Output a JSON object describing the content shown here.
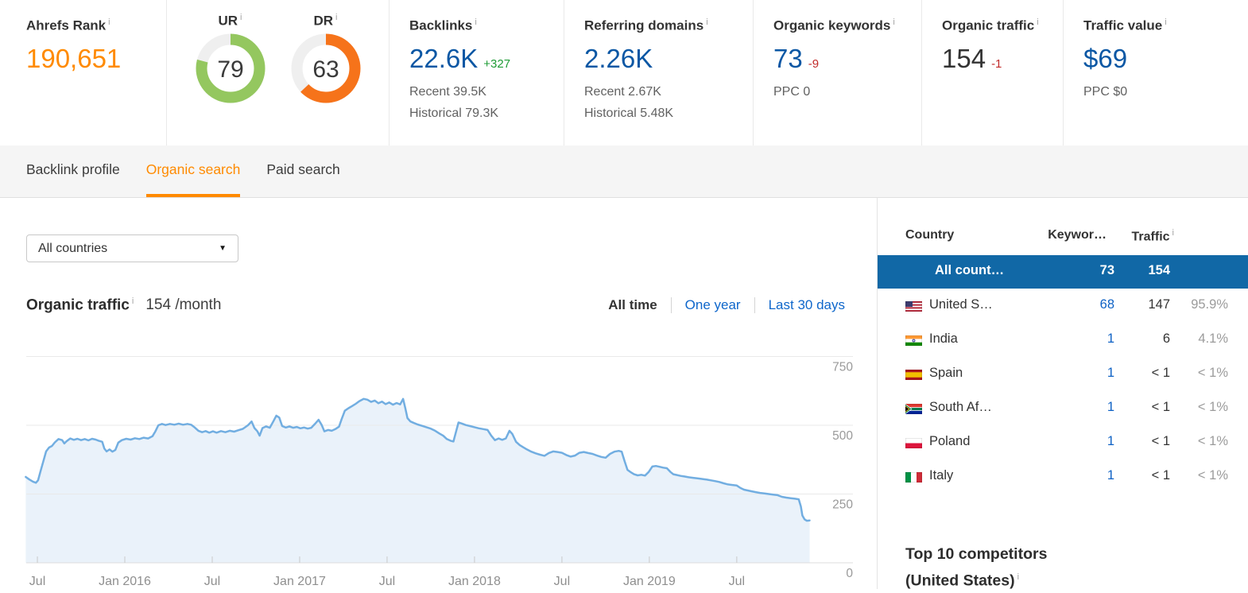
{
  "ui": {
    "info_glyph": "i",
    "select_arrow": "▼"
  },
  "overview": {
    "ahrefs_rank": {
      "label": "Ahrefs Rank",
      "value": "190,651"
    },
    "ur": {
      "label": "UR",
      "value": 79,
      "color": "#94c75f"
    },
    "dr": {
      "label": "DR",
      "value": 63,
      "color": "#f6731a"
    },
    "backlinks": {
      "label": "Backlinks",
      "value": "22.6K",
      "delta": "+327",
      "recent": "Recent 39.5K",
      "historical": "Historical 79.3K"
    },
    "referring_domains": {
      "label": "Referring domains",
      "value": "2.26K",
      "recent": "Recent 2.67K",
      "historical": "Historical 5.48K"
    },
    "organic_keywords": {
      "label": "Organic keywords",
      "value": "73",
      "delta": "-9",
      "ppc": "PPC 0"
    },
    "organic_traffic": {
      "label": "Organic traffic",
      "value": "154",
      "delta": "-1"
    },
    "traffic_value": {
      "label": "Traffic value",
      "value": "$69",
      "ppc": "PPC $0"
    }
  },
  "tabs": [
    {
      "label": "Backlink profile",
      "active": false
    },
    {
      "label": "Organic search",
      "active": true
    },
    {
      "label": "Paid search",
      "active": false
    }
  ],
  "filters": {
    "country_select": "All countries"
  },
  "chart_header": {
    "title": "Organic traffic",
    "value": "154",
    "unit": "/month",
    "ranges": [
      {
        "label": "All time",
        "active": true
      },
      {
        "label": "One year",
        "active": false
      },
      {
        "label": "Last 30 days",
        "active": false
      }
    ]
  },
  "chart_data": {
    "type": "area",
    "title": "Organic traffic",
    "x_unit": "months_from_2015-06",
    "x_tick_labels": [
      "Jul",
      "Jan 2016",
      "Jul",
      "Jan 2017",
      "Jul",
      "Jan 2018",
      "Jul",
      "Jan 2019",
      "Jul"
    ],
    "x_tick_months": [
      1,
      7,
      13,
      19,
      25,
      31,
      37,
      43,
      49
    ],
    "y_ticks": [
      0,
      250,
      500,
      750
    ],
    "ylim": [
      0,
      810
    ],
    "grid": true,
    "legend": false,
    "line_color": "#72aee1",
    "fill_color": "#eaf2fa",
    "points": [
      [
        0.2,
        312
      ],
      [
        0.45,
        303
      ],
      [
        0.7,
        295
      ],
      [
        0.9,
        291
      ],
      [
        1.05,
        300
      ],
      [
        1.2,
        330
      ],
      [
        1.4,
        368
      ],
      [
        1.6,
        405
      ],
      [
        1.8,
        419
      ],
      [
        2.0,
        425
      ],
      [
        2.2,
        438
      ],
      [
        2.45,
        450
      ],
      [
        2.7,
        446
      ],
      [
        2.85,
        434
      ],
      [
        3.0,
        442
      ],
      [
        3.25,
        452
      ],
      [
        3.5,
        447
      ],
      [
        3.75,
        451
      ],
      [
        4.0,
        446
      ],
      [
        4.25,
        450
      ],
      [
        4.5,
        445
      ],
      [
        4.75,
        451
      ],
      [
        5.0,
        448
      ],
      [
        5.2,
        444
      ],
      [
        5.45,
        440
      ],
      [
        5.6,
        415
      ],
      [
        5.75,
        405
      ],
      [
        5.95,
        412
      ],
      [
        6.15,
        404
      ],
      [
        6.35,
        410
      ],
      [
        6.55,
        437
      ],
      [
        6.8,
        446
      ],
      [
        7.1,
        451
      ],
      [
        7.4,
        448
      ],
      [
        7.7,
        453
      ],
      [
        8.0,
        450
      ],
      [
        8.3,
        455
      ],
      [
        8.6,
        452
      ],
      [
        8.9,
        460
      ],
      [
        9.1,
        478
      ],
      [
        9.3,
        500
      ],
      [
        9.55,
        505
      ],
      [
        9.8,
        501
      ],
      [
        10.1,
        505
      ],
      [
        10.4,
        502
      ],
      [
        10.7,
        506
      ],
      [
        11.0,
        502
      ],
      [
        11.3,
        505
      ],
      [
        11.55,
        502
      ],
      [
        11.8,
        492
      ],
      [
        12.05,
        480
      ],
      [
        12.3,
        475
      ],
      [
        12.55,
        479
      ],
      [
        12.8,
        473
      ],
      [
        13.05,
        478
      ],
      [
        13.3,
        473
      ],
      [
        13.6,
        479
      ],
      [
        13.9,
        475
      ],
      [
        14.2,
        480
      ],
      [
        14.5,
        477
      ],
      [
        14.8,
        482
      ],
      [
        15.1,
        487
      ],
      [
        15.45,
        500
      ],
      [
        15.7,
        514
      ],
      [
        15.9,
        490
      ],
      [
        16.1,
        478
      ],
      [
        16.25,
        462
      ],
      [
        16.45,
        490
      ],
      [
        16.7,
        496
      ],
      [
        16.95,
        491
      ],
      [
        17.2,
        515
      ],
      [
        17.4,
        535
      ],
      [
        17.6,
        528
      ],
      [
        17.8,
        497
      ],
      [
        18.05,
        492
      ],
      [
        18.3,
        496
      ],
      [
        18.55,
        491
      ],
      [
        18.8,
        494
      ],
      [
        19.05,
        489
      ],
      [
        19.3,
        492
      ],
      [
        19.55,
        488
      ],
      [
        19.8,
        491
      ],
      [
        20.05,
        505
      ],
      [
        20.3,
        520
      ],
      [
        20.5,
        502
      ],
      [
        20.7,
        478
      ],
      [
        20.95,
        483
      ],
      [
        21.2,
        480
      ],
      [
        21.45,
        486
      ],
      [
        21.7,
        495
      ],
      [
        21.9,
        525
      ],
      [
        22.1,
        553
      ],
      [
        22.35,
        562
      ],
      [
        22.6,
        570
      ],
      [
        22.85,
        578
      ],
      [
        23.1,
        588
      ],
      [
        23.4,
        596
      ],
      [
        23.65,
        593
      ],
      [
        23.9,
        585
      ],
      [
        24.15,
        590
      ],
      [
        24.4,
        580
      ],
      [
        24.65,
        586
      ],
      [
        24.9,
        577
      ],
      [
        25.15,
        583
      ],
      [
        25.4,
        575
      ],
      [
        25.65,
        581
      ],
      [
        25.9,
        576
      ],
      [
        26.1,
        596
      ],
      [
        26.25,
        562
      ],
      [
        26.4,
        526
      ],
      [
        26.6,
        514
      ],
      [
        26.85,
        508
      ],
      [
        27.1,
        503
      ],
      [
        27.4,
        498
      ],
      [
        27.7,
        493
      ],
      [
        28.0,
        488
      ],
      [
        28.3,
        480
      ],
      [
        28.6,
        470
      ],
      [
        28.85,
        462
      ],
      [
        29.1,
        450
      ],
      [
        29.35,
        444
      ],
      [
        29.55,
        441
      ],
      [
        29.75,
        480
      ],
      [
        29.9,
        510
      ],
      [
        30.15,
        506
      ],
      [
        30.4,
        501
      ],
      [
        30.7,
        497
      ],
      [
        31.0,
        493
      ],
      [
        31.3,
        489
      ],
      [
        31.6,
        486
      ],
      [
        31.9,
        483
      ],
      [
        32.15,
        462
      ],
      [
        32.4,
        446
      ],
      [
        32.65,
        452
      ],
      [
        32.9,
        447
      ],
      [
        33.15,
        452
      ],
      [
        33.4,
        480
      ],
      [
        33.6,
        468
      ],
      [
        33.85,
        440
      ],
      [
        34.1,
        428
      ],
      [
        34.35,
        420
      ],
      [
        34.6,
        412
      ],
      [
        34.9,
        404
      ],
      [
        35.2,
        398
      ],
      [
        35.5,
        393
      ],
      [
        35.8,
        389
      ],
      [
        36.1,
        399
      ],
      [
        36.4,
        405
      ],
      [
        36.7,
        403
      ],
      [
        37.0,
        400
      ],
      [
        37.3,
        392
      ],
      [
        37.6,
        386
      ],
      [
        37.9,
        390
      ],
      [
        38.2,
        400
      ],
      [
        38.5,
        403
      ],
      [
        38.8,
        399
      ],
      [
        39.1,
        396
      ],
      [
        39.4,
        390
      ],
      [
        39.7,
        385
      ],
      [
        40.0,
        382
      ],
      [
        40.3,
        396
      ],
      [
        40.6,
        404
      ],
      [
        40.9,
        407
      ],
      [
        41.1,
        404
      ],
      [
        41.3,
        370
      ],
      [
        41.5,
        338
      ],
      [
        41.7,
        330
      ],
      [
        41.95,
        322
      ],
      [
        42.2,
        318
      ],
      [
        42.45,
        320
      ],
      [
        42.7,
        317
      ],
      [
        42.95,
        330
      ],
      [
        43.2,
        350
      ],
      [
        43.45,
        352
      ],
      [
        43.7,
        349
      ],
      [
        43.95,
        346
      ],
      [
        44.2,
        344
      ],
      [
        44.45,
        330
      ],
      [
        44.65,
        322
      ],
      [
        44.9,
        319
      ],
      [
        45.15,
        316
      ],
      [
        45.4,
        314
      ],
      [
        45.7,
        311
      ],
      [
        46.0,
        309
      ],
      [
        46.3,
        307
      ],
      [
        46.6,
        305
      ],
      [
        46.9,
        303
      ],
      [
        47.2,
        300
      ],
      [
        47.5,
        297
      ],
      [
        47.8,
        294
      ],
      [
        48.1,
        289
      ],
      [
        48.4,
        285
      ],
      [
        48.7,
        283
      ],
      [
        49.0,
        281
      ],
      [
        49.25,
        272
      ],
      [
        49.5,
        266
      ],
      [
        49.75,
        263
      ],
      [
        50.0,
        260
      ],
      [
        50.3,
        257
      ],
      [
        50.6,
        254
      ],
      [
        50.9,
        252
      ],
      [
        51.2,
        250
      ],
      [
        51.5,
        248
      ],
      [
        51.8,
        246
      ],
      [
        52.1,
        240
      ],
      [
        52.4,
        237
      ],
      [
        52.7,
        235
      ],
      [
        53.0,
        233
      ],
      [
        53.25,
        231
      ],
      [
        53.4,
        205
      ],
      [
        53.5,
        172
      ],
      [
        53.65,
        158
      ],
      [
        53.8,
        153
      ],
      [
        54.0,
        154
      ]
    ]
  },
  "countries": {
    "headers": {
      "country": "Country",
      "keywords": "Keywor…",
      "traffic": "Traffic"
    },
    "rows": [
      {
        "name": "All count…",
        "flag": null,
        "keywords": "73",
        "traffic": "154",
        "pct": "",
        "selected": true
      },
      {
        "name": "United S…",
        "flag": "us",
        "keywords": "68",
        "traffic": "147",
        "pct": "95.9%",
        "selected": false
      },
      {
        "name": "India",
        "flag": "in",
        "keywords": "1",
        "traffic": "6",
        "pct": "4.1%",
        "selected": false
      },
      {
        "name": "Spain",
        "flag": "es",
        "keywords": "1",
        "traffic": "< 1",
        "pct": "< 1%",
        "selected": false
      },
      {
        "name": "South Af…",
        "flag": "za",
        "keywords": "1",
        "traffic": "< 1",
        "pct": "< 1%",
        "selected": false
      },
      {
        "name": "Poland",
        "flag": "pl",
        "keywords": "1",
        "traffic": "< 1",
        "pct": "< 1%",
        "selected": false
      },
      {
        "name": "Italy",
        "flag": "it",
        "keywords": "1",
        "traffic": "< 1",
        "pct": "< 1%",
        "selected": false
      }
    ]
  },
  "competitors": {
    "line1": "Top 10 competitors",
    "line2": "(United States)"
  },
  "colors": {
    "accent_orange": "#ff8a00",
    "metric_blue": "#0b57a4",
    "link_blue": "#0f67cb",
    "positive_green": "#1e9b35",
    "negative_red": "#c22a29",
    "selected_row_bg": "#1168a6",
    "ur_green": "#94c75f",
    "dr_orange": "#f6731a"
  }
}
